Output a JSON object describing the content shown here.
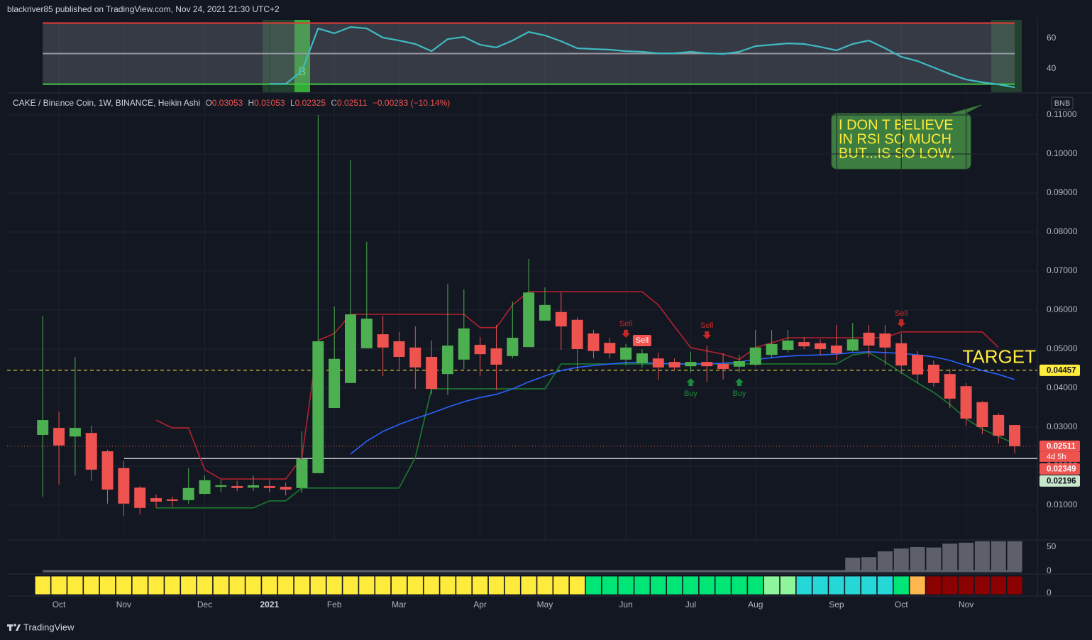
{
  "chart_data": {
    "type": "candlestick",
    "header": "blackriver85 published on TradingView.com, Nov 24, 2021 21:30 UTC+2",
    "symbol": "CAKE / Binance Coin, 1W, BINANCE, Heikin Ashi",
    "ohlc_legend": [
      {
        "key": "O",
        "value": "0.03053"
      },
      {
        "key": "H",
        "value": "0.03053"
      },
      {
        "key": "L",
        "value": "0.02325"
      },
      {
        "key": "C",
        "value": "0.02511"
      }
    ],
    "change": "−0.00283 (−10.14%)",
    "currency": "BNB",
    "footer": "TradingView",
    "up_color": "#4caf50",
    "down_color": "#ef5350",
    "grid": true,
    "xlim": [
      -2.2,
      61.4
    ],
    "xticks": [
      {
        "value": 1,
        "label": "Oct"
      },
      {
        "value": 5,
        "label": "Nov"
      },
      {
        "value": 10,
        "label": "Dec"
      },
      {
        "value": 14,
        "label": "2021"
      },
      {
        "value": 18,
        "label": "Feb"
      },
      {
        "value": 22,
        "label": "Mar"
      },
      {
        "value": 27,
        "label": "Apr"
      },
      {
        "value": 31,
        "label": "May"
      },
      {
        "value": 36,
        "label": "Jun"
      },
      {
        "value": 40,
        "label": "Jul"
      },
      {
        "value": 44,
        "label": "Aug"
      },
      {
        "value": 49,
        "label": "Sep"
      },
      {
        "value": 53,
        "label": "Oct"
      },
      {
        "value": 57,
        "label": "Nov"
      }
    ],
    "ylim": [
      0.00127,
      0.11527
    ],
    "yticks": [
      {
        "value": 0.01,
        "label": "0.01000"
      },
      {
        "value": 0.02,
        "label": "0.02000"
      },
      {
        "value": 0.03,
        "label": "0.03000"
      },
      {
        "value": 0.04,
        "label": "0.04000"
      },
      {
        "value": 0.05,
        "label": "0.05000"
      },
      {
        "value": 0.06,
        "label": "0.06000"
      },
      {
        "value": 0.07,
        "label": "0.07000"
      },
      {
        "value": 0.08,
        "label": "0.08000"
      },
      {
        "value": 0.09,
        "label": "0.09000"
      },
      {
        "value": 0.1,
        "label": "0.10000"
      },
      {
        "value": 0.11,
        "label": "0.11000"
      }
    ],
    "ohlc": [
      [
        0.028,
        0.0585,
        0.0122,
        0.0318
      ],
      [
        0.0298,
        0.034,
        0.0153,
        0.0253
      ],
      [
        0.0276,
        0.048,
        0.0176,
        0.0298
      ],
      [
        0.0285,
        0.0304,
        0.0162,
        0.0191
      ],
      [
        0.0238,
        0.0242,
        0.0104,
        0.014
      ],
      [
        0.0195,
        0.0213,
        0.0073,
        0.0104
      ],
      [
        0.0145,
        0.0149,
        0.0076,
        0.0093
      ],
      [
        0.0118,
        0.0127,
        0.0093,
        0.0109
      ],
      [
        0.0115,
        0.0122,
        0.0096,
        0.0111
      ],
      [
        0.0113,
        0.0195,
        0.0104,
        0.0144
      ],
      [
        0.0129,
        0.0176,
        0.0127,
        0.0164
      ],
      [
        0.0147,
        0.0165,
        0.0133,
        0.0151
      ],
      [
        0.0149,
        0.0162,
        0.0136,
        0.0144
      ],
      [
        0.0145,
        0.0176,
        0.0136,
        0.0151
      ],
      [
        0.0149,
        0.0165,
        0.0133,
        0.0144
      ],
      [
        0.0147,
        0.0158,
        0.0125,
        0.014
      ],
      [
        0.0144,
        0.0289,
        0.0131,
        0.0218
      ],
      [
        0.0182,
        0.11,
        0.0182,
        0.052
      ],
      [
        0.0349,
        0.0609,
        0.0349,
        0.0475
      ],
      [
        0.0413,
        0.0984,
        0.0413,
        0.0589
      ],
      [
        0.0502,
        0.0775,
        0.0502,
        0.0578
      ],
      [
        0.0538,
        0.0585,
        0.0431,
        0.0504
      ],
      [
        0.052,
        0.0544,
        0.0449,
        0.048
      ],
      [
        0.0504,
        0.0558,
        0.0398,
        0.0453
      ],
      [
        0.048,
        0.0522,
        0.0385,
        0.0398
      ],
      [
        0.0436,
        0.0667,
        0.0382,
        0.0509
      ],
      [
        0.0473,
        0.0653,
        0.0449,
        0.0553
      ],
      [
        0.0511,
        0.0531,
        0.0431,
        0.0487
      ],
      [
        0.0502,
        0.0562,
        0.0395,
        0.046
      ],
      [
        0.0482,
        0.0622,
        0.0476,
        0.0529
      ],
      [
        0.0505,
        0.0731,
        0.0505,
        0.0645
      ],
      [
        0.0573,
        0.0658,
        0.0573,
        0.0613
      ],
      [
        0.0595,
        0.0645,
        0.0498,
        0.0558
      ],
      [
        0.0575,
        0.0582,
        0.0444,
        0.05
      ],
      [
        0.054,
        0.0549,
        0.0476,
        0.0495
      ],
      [
        0.0516,
        0.0529,
        0.0476,
        0.0489
      ],
      [
        0.0473,
        0.0513,
        0.0458,
        0.0504
      ],
      [
        0.0464,
        0.05,
        0.0453,
        0.0489
      ],
      [
        0.0476,
        0.0491,
        0.0422,
        0.0453
      ],
      [
        0.0467,
        0.0476,
        0.0445,
        0.0453
      ],
      [
        0.0456,
        0.0493,
        0.044,
        0.0467
      ],
      [
        0.0467,
        0.0509,
        0.0416,
        0.0456
      ],
      [
        0.0462,
        0.0489,
        0.0422,
        0.0449
      ],
      [
        0.0455,
        0.0485,
        0.044,
        0.0469
      ],
      [
        0.046,
        0.0549,
        0.0456,
        0.0504
      ],
      [
        0.0485,
        0.0549,
        0.0476,
        0.0513
      ],
      [
        0.0498,
        0.0549,
        0.0491,
        0.0522
      ],
      [
        0.0518,
        0.0531,
        0.05,
        0.0507
      ],
      [
        0.0515,
        0.0525,
        0.0485,
        0.05
      ],
      [
        0.0509,
        0.0562,
        0.0471,
        0.0489
      ],
      [
        0.0496,
        0.0567,
        0.0493,
        0.0525
      ],
      [
        0.0542,
        0.0562,
        0.048,
        0.0509
      ],
      [
        0.054,
        0.0562,
        0.0458,
        0.0504
      ],
      [
        0.0515,
        0.054,
        0.0436,
        0.0458
      ],
      [
        0.0485,
        0.0495,
        0.0413,
        0.0435
      ],
      [
        0.046,
        0.0471,
        0.0404,
        0.0413
      ],
      [
        0.0436,
        0.0449,
        0.0349,
        0.0373
      ],
      [
        0.0405,
        0.0413,
        0.0304,
        0.0322
      ],
      [
        0.0364,
        0.0367,
        0.0282,
        0.03
      ],
      [
        0.0331,
        0.0336,
        0.0258,
        0.0278
      ],
      [
        0.03053,
        0.03053,
        0.02325,
        0.02511
      ]
    ],
    "series": [
      {
        "color": "#b2222e",
        "values": [
          null,
          null,
          null,
          null,
          null,
          null,
          null,
          0.0318,
          0.0298,
          0.0298,
          0.0191,
          0.0167,
          0.0167,
          0.0167,
          0.0167,
          0.0167,
          0.0222,
          0.0522,
          0.054,
          0.0589,
          0.0589,
          0.0589,
          0.0589,
          0.0589,
          0.0589,
          0.0589,
          0.0589,
          0.0555,
          0.0555,
          0.0613,
          0.0647,
          0.0647,
          0.0647,
          0.0647,
          0.0647,
          0.0647,
          0.0647,
          0.0647,
          0.0613,
          0.0558,
          0.0504,
          0.0495,
          0.0487,
          0.0473,
          0.0504,
          0.0516,
          0.0529,
          0.0529,
          0.0529,
          0.0529,
          0.0529,
          0.0529,
          0.0529,
          0.0544,
          0.0544,
          0.0544,
          0.0544,
          0.0544,
          0.0544,
          0.0504,
          null
        ]
      },
      {
        "color": "#1b7a2e",
        "values": [
          null,
          null,
          null,
          null,
          null,
          null,
          null,
          0.0093,
          0.0093,
          0.0093,
          0.0093,
          0.0093,
          0.0093,
          0.0093,
          0.0111,
          0.0111,
          0.0144,
          0.0144,
          0.0144,
          0.0144,
          0.0144,
          0.0144,
          0.0144,
          0.0222,
          0.0398,
          0.0398,
          0.0398,
          0.0398,
          0.0398,
          0.0398,
          0.0398,
          0.0398,
          0.0462,
          0.0462,
          0.0462,
          0.0462,
          0.0462,
          0.0462,
          0.0462,
          0.0462,
          0.0462,
          0.0462,
          0.0462,
          0.0462,
          0.0462,
          0.0462,
          0.0462,
          0.0462,
          0.0462,
          0.0462,
          0.0485,
          0.0491,
          0.0467,
          0.044,
          0.0413,
          0.0389,
          0.0358,
          0.0322,
          0.0295,
          0.0276,
          0.0258
        ]
      },
      {
        "color": "#2962ff",
        "values": [
          null,
          null,
          null,
          null,
          null,
          null,
          null,
          null,
          null,
          null,
          null,
          null,
          null,
          null,
          null,
          null,
          null,
          null,
          null,
          0.0231,
          0.0264,
          0.0289,
          0.0307,
          0.0322,
          0.0336,
          0.0351,
          0.0365,
          0.0376,
          0.0384,
          0.0398,
          0.0416,
          0.0431,
          0.0445,
          0.0453,
          0.0458,
          0.0462,
          0.0465,
          0.0465,
          0.0464,
          0.0462,
          0.0462,
          0.0462,
          0.0464,
          0.0467,
          0.0473,
          0.0478,
          0.0482,
          0.0484,
          0.0485,
          0.0487,
          0.0491,
          0.0493,
          0.0491,
          0.0489,
          0.0485,
          0.048,
          0.0471,
          0.0458,
          0.0445,
          0.0435,
          0.0422
        ]
      }
    ],
    "price_tags": [
      {
        "value": 0.04457,
        "bg": "#ffeb3b",
        "fg": "#131722",
        "line": "dashed",
        "line_color": "#ffeb3b"
      },
      {
        "value": 0.02511,
        "bg": "#ef5350",
        "fg": "#ffffff",
        "line": "dotted",
        "line_color": "#ef5350",
        "countdown": "4d 5h"
      },
      {
        "value": 0.02349,
        "bg": "#ef5350",
        "fg": "#ffffff"
      },
      {
        "value": 0.02196,
        "bg": "#c8e6c9",
        "fg": "#131722",
        "line": "solid",
        "line_color": "#ffffff"
      }
    ],
    "signals": [
      {
        "label": "Sell",
        "index": 36,
        "side": "sell"
      },
      {
        "label": "Sell",
        "index": 37,
        "side": "sell",
        "filled": true
      },
      {
        "label": "Sell",
        "index": 41,
        "side": "sell"
      },
      {
        "label": "Sell",
        "index": 53,
        "side": "sell"
      },
      {
        "label": "Buy",
        "index": 40,
        "side": "buy"
      },
      {
        "label": "Buy",
        "index": 43,
        "side": "buy"
      }
    ],
    "target_label": "TARGET",
    "annotation": [
      "I DON T BELIEVE",
      "IN RSI SO MUCH",
      "BUT...IS SO LOW."
    ],
    "rsi": {
      "color": "#3fbac2",
      "ylim": [
        24.7,
        72.1
      ],
      "yticks": [
        40,
        60
      ],
      "levels": [
        {
          "value": 70,
          "color": "#e53935"
        },
        {
          "value": 50,
          "color": "#9598a1"
        },
        {
          "value": 30,
          "color": "#43c843"
        }
      ],
      "signal_label": "B",
      "values": [
        null,
        null,
        null,
        null,
        null,
        null,
        null,
        null,
        null,
        null,
        null,
        null,
        null,
        null,
        30.2,
        30.2,
        38.6,
        66.5,
        63.3,
        67.4,
        66.5,
        60.5,
        58.6,
        56.3,
        51.6,
        59.5,
        60.9,
        55.8,
        54,
        58.6,
        64.2,
        61.9,
        58.1,
        53.5,
        53,
        52.6,
        51.6,
        51.2,
        50.2,
        50.2,
        51.2,
        50.2,
        49.8,
        51.2,
        54.9,
        55.8,
        56.7,
        56.3,
        54.4,
        52.1,
        56.3,
        58.6,
        53.5,
        47.9,
        45.1,
        40.9,
        36.7,
        33,
        31.2,
        29.8,
        27.9
      ]
    },
    "histogram": {
      "color": "#5d606b",
      "ylim": [
        0,
        63.2
      ],
      "yticks": [
        0,
        50
      ],
      "values": [
        null,
        null,
        null,
        null,
        null,
        null,
        null,
        null,
        null,
        null,
        null,
        null,
        null,
        null,
        null,
        null,
        null,
        null,
        null,
        null,
        null,
        null,
        null,
        null,
        null,
        null,
        null,
        null,
        null,
        null,
        null,
        null,
        null,
        null,
        null,
        null,
        null,
        null,
        null,
        null,
        null,
        null,
        null,
        null,
        null,
        null,
        null,
        null,
        null,
        null,
        28,
        29,
        41,
        47,
        50,
        49,
        57,
        59,
        62,
        62,
        62
      ]
    },
    "strip": {
      "yticks": [
        0
      ],
      "colors": [
        "#ffeb3b",
        "#ffeb3b",
        "#ffeb3b",
        "#ffeb3b",
        "#ffeb3b",
        "#ffeb3b",
        "#ffeb3b",
        "#ffeb3b",
        "#ffeb3b",
        "#ffeb3b",
        "#ffeb3b",
        "#ffeb3b",
        "#ffeb3b",
        "#ffeb3b",
        "#ffeb3b",
        "#ffeb3b",
        "#ffeb3b",
        "#ffeb3b",
        "#ffeb3b",
        "#ffeb3b",
        "#ffeb3b",
        "#ffeb3b",
        "#ffeb3b",
        "#ffeb3b",
        "#ffeb3b",
        "#ffeb3b",
        "#ffeb3b",
        "#ffeb3b",
        "#ffeb3b",
        "#ffeb3b",
        "#ffeb3b",
        "#ffeb3b",
        "#ffeb3b",
        "#ffeb3b",
        "#00e676",
        "#00e676",
        "#00e676",
        "#00e676",
        "#00e676",
        "#00e676",
        "#00e676",
        "#00e676",
        "#00e676",
        "#00e676",
        "#00e676",
        "#8ff59a",
        "#8ff59a",
        "#26d7d7",
        "#26d7d7",
        "#26d7d7",
        "#26d7d7",
        "#26d7d7",
        "#26d7d7",
        "#00e676",
        "#ffb74d",
        "#8b0000",
        "#8b0000",
        "#8b0000",
        "#8b0000",
        "#8b0000",
        "#8b0000"
      ]
    }
  }
}
